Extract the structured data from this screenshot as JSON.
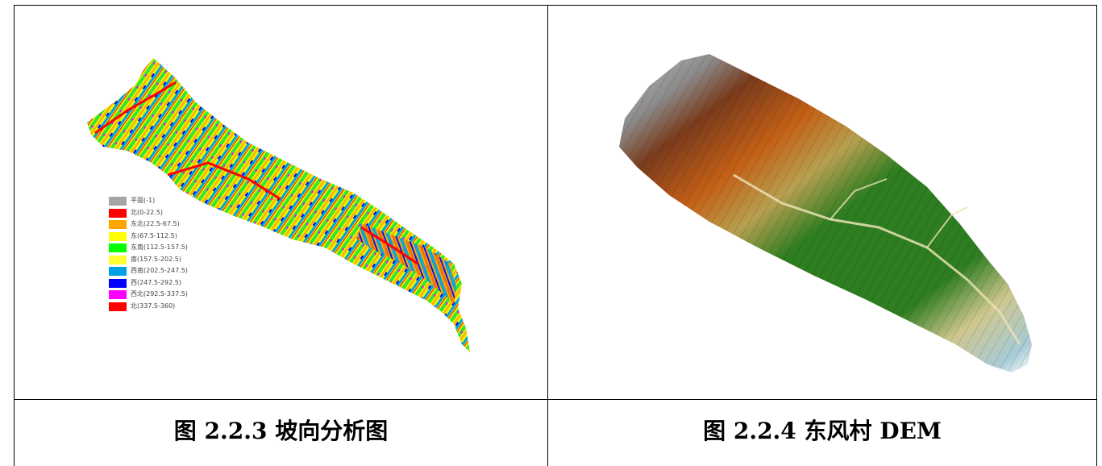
{
  "figures": [
    {
      "caption": "图 2.2.3 坡向分析图",
      "legend": [
        {
          "label": "平面(-1)",
          "color": "#a5a5a5"
        },
        {
          "label": "北(0-22.5)",
          "color": "#ff0000"
        },
        {
          "label": "东北(22.5-67.5)",
          "color": "#ffa500"
        },
        {
          "label": "东(67.5-112.5)",
          "color": "#ffff00"
        },
        {
          "label": "东南(112.5-157.5)",
          "color": "#00ff00"
        },
        {
          "label": "南(157.5-202.5)",
          "color": "#ffff33"
        },
        {
          "label": "西南(202.5-247.5)",
          "color": "#00a0e6"
        },
        {
          "label": "西(247.5-292.5)",
          "color": "#0000ff"
        },
        {
          "label": "西北(292.5-337.5)",
          "color": "#ff00ff"
        },
        {
          "label": "北(337.5-360)",
          "color": "#ff0000"
        }
      ]
    },
    {
      "caption": "图 2.2.4 东风村 DEM"
    }
  ]
}
